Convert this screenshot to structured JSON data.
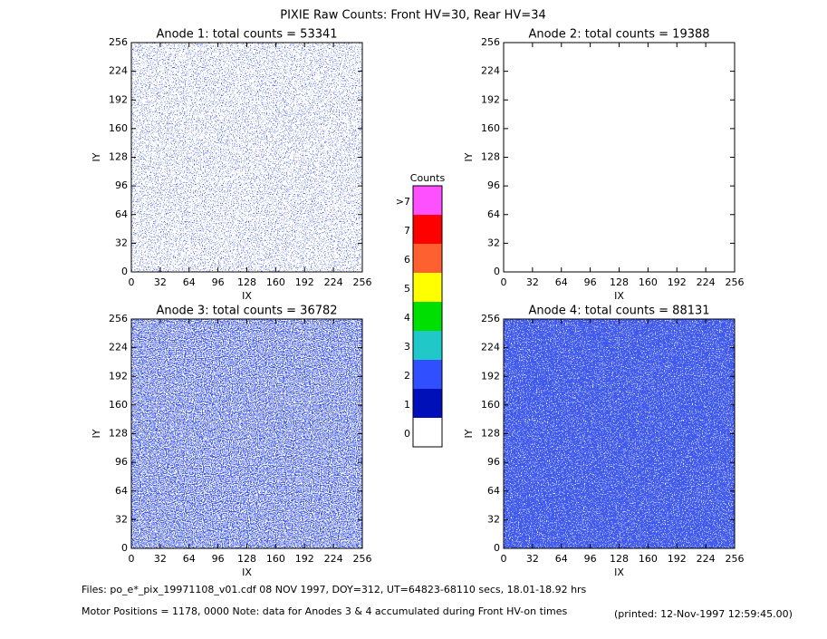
{
  "title": "PIXIE Raw Counts:  Front HV=30, Rear HV=34",
  "chart_data": [
    {
      "type": "heatmap",
      "title": "Anode 1: total counts = 53341",
      "xlabel": "IX",
      "ylabel": "IY",
      "xlim": [
        0,
        256
      ],
      "ylim": [
        0,
        256
      ],
      "xticks": [
        0,
        32,
        64,
        96,
        128,
        160,
        192,
        224,
        256
      ],
      "yticks": [
        0,
        32,
        64,
        96,
        128,
        160,
        192,
        224,
        256
      ]
    },
    {
      "type": "heatmap",
      "title": "Anode 2: total counts = 19388",
      "xlabel": "IX",
      "ylabel": "IY",
      "xlim": [
        0,
        256
      ],
      "ylim": [
        0,
        256
      ],
      "xticks": [
        0,
        32,
        64,
        96,
        128,
        160,
        192,
        224,
        256
      ],
      "yticks": [
        0,
        32,
        64,
        96,
        128,
        160,
        192,
        224,
        256
      ]
    },
    {
      "type": "heatmap",
      "title": "Anode 3: total counts = 36782",
      "xlabel": "IX",
      "ylabel": "IY",
      "xlim": [
        0,
        256
      ],
      "ylim": [
        0,
        256
      ],
      "xticks": [
        0,
        32,
        64,
        96,
        128,
        160,
        192,
        224,
        256
      ],
      "yticks": [
        0,
        32,
        64,
        96,
        128,
        160,
        192,
        224,
        256
      ]
    },
    {
      "type": "heatmap",
      "title": "Anode 4: total counts = 88131",
      "xlabel": "IX",
      "ylabel": "IY",
      "xlim": [
        0,
        256
      ],
      "ylim": [
        0,
        256
      ],
      "xticks": [
        0,
        32,
        64,
        96,
        128,
        160,
        192,
        224,
        256
      ],
      "yticks": [
        0,
        32,
        64,
        96,
        128,
        160,
        192,
        224,
        256
      ]
    }
  ],
  "colorbar": {
    "title": "Counts",
    "levels": [
      {
        "label": "0",
        "color": "#ffffff"
      },
      {
        "label": "1",
        "color": "#0010b8"
      },
      {
        "label": "2",
        "color": "#3050ff"
      },
      {
        "label": "3",
        "color": "#20c8c8"
      },
      {
        "label": "4",
        "color": "#00e000"
      },
      {
        "label": "5",
        "color": "#ffff00"
      },
      {
        "label": "6",
        "color": "#ff6030"
      },
      {
        "label": "7",
        "color": "#ff0000"
      },
      {
        "label": ">7",
        "color": "#ff50ff"
      }
    ]
  },
  "footer": {
    "files": "Files: po_e*_pix_19971108_v01.cdf    08 NOV 1997, DOY=312, UT=64823-68110 secs, 18.01-18.92 hrs",
    "motor": "Motor Positions = 1178, 0000    Note: data for Anodes 3 & 4 accumulated during Front HV-on times",
    "printed": "(printed: 12-Nov-1997 12:59:45.00)"
  }
}
